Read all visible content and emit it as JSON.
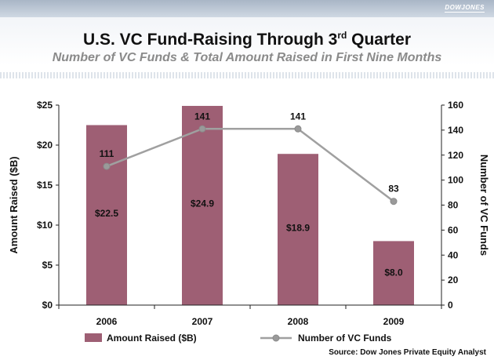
{
  "header": {
    "logo": "DOWJONES",
    "title_main": "U.S. VC Fund-Raising Through 3",
    "title_sup": "rd",
    "title_end": " Quarter",
    "subtitle": "Number of VC Funds & Total Amount Raised in First Nine Months"
  },
  "chart_data": {
    "type": "bar",
    "categories": [
      "2006",
      "2007",
      "2008",
      "2009"
    ],
    "series": [
      {
        "name": "Amount Raised ($B)",
        "type": "bar",
        "axis": "left",
        "values": [
          22.5,
          24.9,
          18.9,
          8.0
        ],
        "labels": [
          "$22.5",
          "$24.9",
          "$18.9",
          "$8.0"
        ],
        "color": "#9e5f74"
      },
      {
        "name": "Number of VC Funds",
        "type": "line",
        "axis": "right",
        "values": [
          111,
          141,
          141,
          83
        ],
        "labels": [
          "111",
          "141",
          "141",
          "83"
        ],
        "color": "#a0a0a0"
      }
    ],
    "ylabel": "Amount Raised ($B)",
    "ylabel_right": "Number of VC Funds",
    "ylim": [
      0,
      25
    ],
    "ylim_right": [
      0,
      160
    ],
    "yticks": [
      "$0",
      "$5",
      "$10",
      "$15",
      "$20",
      "$25"
    ],
    "yticks_right": [
      "0",
      "20",
      "40",
      "60",
      "80",
      "100",
      "120",
      "140",
      "160"
    ],
    "grid": false,
    "legend": "bottom"
  },
  "footer": {
    "source": "Source: Dow Jones Private Equity Analyst"
  }
}
